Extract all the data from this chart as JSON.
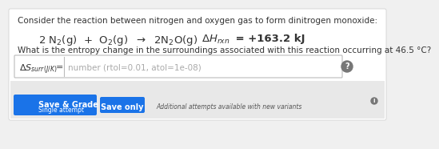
{
  "bg_color": "#f0f0f0",
  "white_bg": "#ffffff",
  "line1": "Consider the reaction between nitrogen and oxygen gas to form dinitrogen monoxide:",
  "line3": "What is the entropy change in the surroundings associated with this reaction occurring at 46.5 °C?",
  "placeholder": "number (rtol=0.01, atol=1e-08)",
  "btn1_text": "Save & Grade",
  "btn1_sub": "Single attempt",
  "btn2_text": "Save only",
  "btn1_color": "#1a73e8",
  "btn2_color": "#1a73e8",
  "footer_text": "Additional attempts available with new variants",
  "input_border": "#bbbbbb",
  "input_bg": "#ffffff",
  "text_color": "#333333",
  "placeholder_color": "#aaaaaa",
  "footer_color": "#555555",
  "font_size_main": 7.5,
  "font_size_reaction": 9.5,
  "font_size_btn": 7,
  "separator_color": "#cccccc",
  "bottom_bg": "#e8e8e8",
  "question_circle_color": "#777777"
}
